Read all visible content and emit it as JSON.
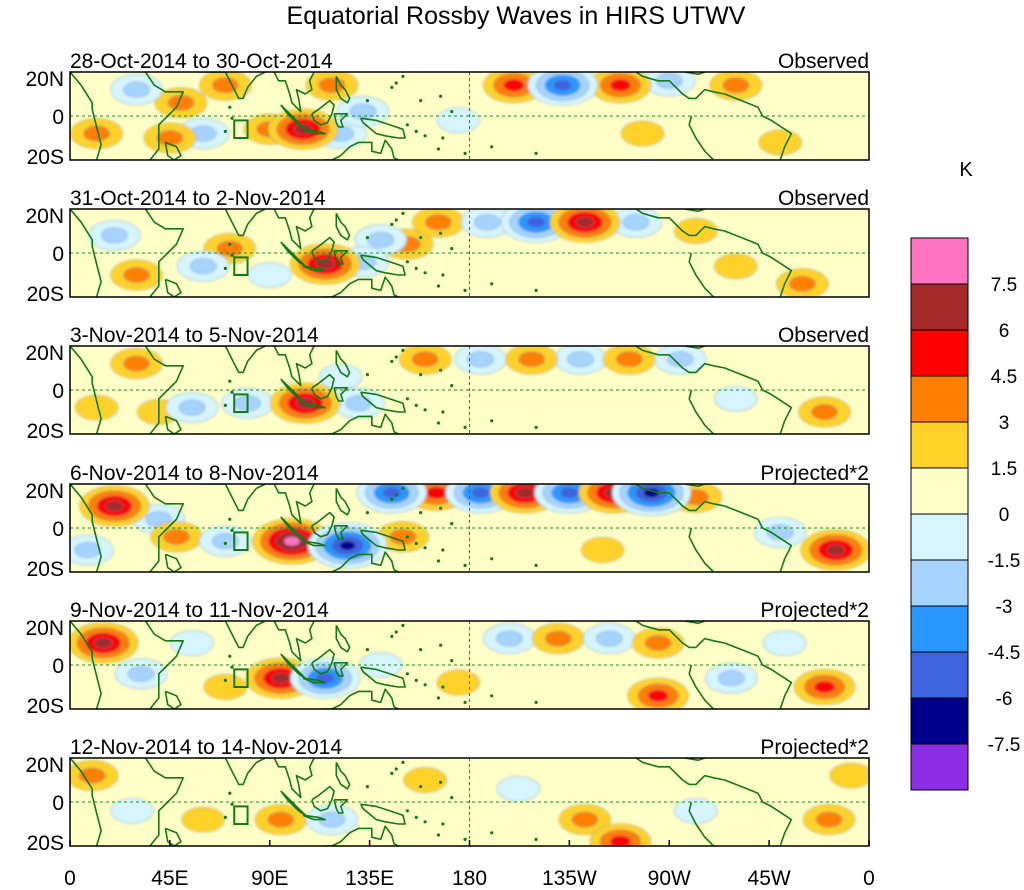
{
  "chart_data": {
    "type": "heatmap",
    "title": "Equatorial Rossby Waves in HIRS UTWV",
    "colorbar": {
      "unit": "K",
      "levels": [
        "7.5",
        "6",
        "4.5",
        "3",
        "1.5",
        "0",
        "-1.5",
        "-3",
        "-4.5",
        "-6",
        "-7.5"
      ],
      "colors": [
        "#ff73c0",
        "#a52a2a",
        "#ff0000",
        "#ff7f00",
        "#ffd22a",
        "#ffffc8",
        "#d6f5ff",
        "#a6d3ff",
        "#2996ff",
        "#3d63e0",
        "#00008c",
        "#8c2ee6"
      ]
    },
    "x_ticks": [
      "0",
      "45E",
      "90E",
      "135E",
      "180",
      "135W",
      "90W",
      "45W",
      "0"
    ],
    "y_ticks": [
      "20N",
      "0",
      "20S"
    ],
    "xlim": [
      0,
      360
    ],
    "ylim": [
      -20,
      20
    ],
    "panels": [
      {
        "date_range": "28-Oct-2014 to 30-Oct-2014",
        "kind": "Observed",
        "anomalies": [
          {
            "lon": 200,
            "lat": 14,
            "value": 5
          },
          {
            "lon": 222,
            "lat": 14,
            "value": -7
          },
          {
            "lon": 248,
            "lat": 14,
            "value": 5
          },
          {
            "lon": 270,
            "lat": 16,
            "value": -3
          },
          {
            "lon": 300,
            "lat": 14,
            "value": 3
          },
          {
            "lon": 105,
            "lat": -6,
            "value": 6
          },
          {
            "lon": 122,
            "lat": -8,
            "value": -3
          },
          {
            "lon": 132,
            "lat": 2,
            "value": -3
          },
          {
            "lon": 118,
            "lat": 14,
            "value": 4
          },
          {
            "lon": 60,
            "lat": -8,
            "value": -4
          },
          {
            "lon": 45,
            "lat": -10,
            "value": 4
          },
          {
            "lon": 50,
            "lat": 6,
            "value": 3
          },
          {
            "lon": 12,
            "lat": -8,
            "value": 3
          },
          {
            "lon": 30,
            "lat": 12,
            "value": -3
          },
          {
            "lon": 90,
            "lat": -6,
            "value": 3
          },
          {
            "lon": 258,
            "lat": -8,
            "value": 2
          },
          {
            "lon": 320,
            "lat": -12,
            "value": 2
          },
          {
            "lon": 175,
            "lat": -2,
            "value": -2
          },
          {
            "lon": 70,
            "lat": 14,
            "value": 3
          }
        ]
      },
      {
        "date_range": "31-Oct-2014 to 2-Nov-2014",
        "kind": "Observed",
        "anomalies": [
          {
            "lon": 166,
            "lat": 14,
            "value": 4
          },
          {
            "lon": 188,
            "lat": 14,
            "value": -4
          },
          {
            "lon": 210,
            "lat": 14,
            "value": -6
          },
          {
            "lon": 232,
            "lat": 14,
            "value": 6
          },
          {
            "lon": 255,
            "lat": 14,
            "value": -3
          },
          {
            "lon": 152,
            "lat": 4,
            "value": 3
          },
          {
            "lon": 115,
            "lat": -5,
            "value": 6
          },
          {
            "lon": 132,
            "lat": -4,
            "value": -4
          },
          {
            "lon": 140,
            "lat": 6,
            "value": -3
          },
          {
            "lon": 60,
            "lat": -6,
            "value": -4
          },
          {
            "lon": 72,
            "lat": 2,
            "value": 3
          },
          {
            "lon": 30,
            "lat": -10,
            "value": 3
          },
          {
            "lon": 20,
            "lat": 8,
            "value": -3
          },
          {
            "lon": 90,
            "lat": -10,
            "value": -2
          },
          {
            "lon": 300,
            "lat": -6,
            "value": 2
          },
          {
            "lon": 330,
            "lat": -14,
            "value": 3
          },
          {
            "lon": 282,
            "lat": 10,
            "value": 2
          }
        ]
      },
      {
        "date_range": "3-Nov-2014 to 5-Nov-2014",
        "kind": "Observed",
        "anomalies": [
          {
            "lon": 160,
            "lat": 14,
            "value": 3
          },
          {
            "lon": 185,
            "lat": 14,
            "value": -3
          },
          {
            "lon": 208,
            "lat": 14,
            "value": 4
          },
          {
            "lon": 230,
            "lat": 14,
            "value": -3
          },
          {
            "lon": 252,
            "lat": 14,
            "value": 4
          },
          {
            "lon": 275,
            "lat": 14,
            "value": -3
          },
          {
            "lon": 106,
            "lat": -6,
            "value": 6
          },
          {
            "lon": 130,
            "lat": -6,
            "value": -4
          },
          {
            "lon": 122,
            "lat": 6,
            "value": -2
          },
          {
            "lon": 30,
            "lat": 12,
            "value": 3
          },
          {
            "lon": 55,
            "lat": -8,
            "value": -3
          },
          {
            "lon": 80,
            "lat": -6,
            "value": -3
          },
          {
            "lon": 40,
            "lat": -10,
            "value": 2
          },
          {
            "lon": 340,
            "lat": -10,
            "value": 4
          },
          {
            "lon": 300,
            "lat": -4,
            "value": -2
          },
          {
            "lon": 12,
            "lat": -8,
            "value": 2
          }
        ]
      },
      {
        "date_range": "6-Nov-2014 to 8-Nov-2014",
        "kind": "Projected*2",
        "anomalies": [
          {
            "lon": 20,
            "lat": 10,
            "value": 7
          },
          {
            "lon": 40,
            "lat": 4,
            "value": -3
          },
          {
            "lon": 48,
            "lat": -4,
            "value": 3
          },
          {
            "lon": 70,
            "lat": -6,
            "value": -4
          },
          {
            "lon": 100,
            "lat": -6,
            "value": 8
          },
          {
            "lon": 125,
            "lat": -8,
            "value": -8
          },
          {
            "lon": 145,
            "lat": 16,
            "value": -6
          },
          {
            "lon": 165,
            "lat": 16,
            "value": 5
          },
          {
            "lon": 185,
            "lat": 16,
            "value": -6
          },
          {
            "lon": 205,
            "lat": 16,
            "value": 6
          },
          {
            "lon": 225,
            "lat": 16,
            "value": -6
          },
          {
            "lon": 245,
            "lat": 16,
            "value": 7
          },
          {
            "lon": 262,
            "lat": 16,
            "value": -8
          },
          {
            "lon": 282,
            "lat": 14,
            "value": 4
          },
          {
            "lon": 345,
            "lat": -10,
            "value": 6
          },
          {
            "lon": 320,
            "lat": -2,
            "value": -3
          },
          {
            "lon": 150,
            "lat": -4,
            "value": 3
          },
          {
            "lon": 8,
            "lat": -10,
            "value": -3
          },
          {
            "lon": 240,
            "lat": -10,
            "value": 2
          }
        ]
      },
      {
        "date_range": "9-Nov-2014 to 11-Nov-2014",
        "kind": "Projected*2",
        "anomalies": [
          {
            "lon": 15,
            "lat": 10,
            "value": 6
          },
          {
            "lon": 32,
            "lat": -4,
            "value": -3
          },
          {
            "lon": 95,
            "lat": -6,
            "value": 6
          },
          {
            "lon": 115,
            "lat": -6,
            "value": -6
          },
          {
            "lon": 140,
            "lat": 0,
            "value": -2
          },
          {
            "lon": 198,
            "lat": 12,
            "value": -3
          },
          {
            "lon": 220,
            "lat": 12,
            "value": 3
          },
          {
            "lon": 243,
            "lat": 12,
            "value": -3
          },
          {
            "lon": 265,
            "lat": 10,
            "value": 3
          },
          {
            "lon": 265,
            "lat": -14,
            "value": 5
          },
          {
            "lon": 340,
            "lat": -10,
            "value": 5
          },
          {
            "lon": 298,
            "lat": -6,
            "value": -3
          },
          {
            "lon": 70,
            "lat": -10,
            "value": 2
          },
          {
            "lon": 55,
            "lat": 10,
            "value": -2
          },
          {
            "lon": 175,
            "lat": -8,
            "value": 2
          },
          {
            "lon": 322,
            "lat": 10,
            "value": -2
          }
        ]
      },
      {
        "date_range": "12-Nov-2014 to 14-Nov-2014",
        "kind": "Projected*2",
        "anomalies": [
          {
            "lon": 10,
            "lat": 12,
            "value": 3
          },
          {
            "lon": 28,
            "lat": -4,
            "value": -2
          },
          {
            "lon": 95,
            "lat": -8,
            "value": 3
          },
          {
            "lon": 118,
            "lat": -8,
            "value": -4
          },
          {
            "lon": 248,
            "lat": -18,
            "value": 5
          },
          {
            "lon": 232,
            "lat": -8,
            "value": 3
          },
          {
            "lon": 342,
            "lat": -8,
            "value": 3
          },
          {
            "lon": 202,
            "lat": 6,
            "value": -2
          },
          {
            "lon": 282,
            "lat": -4,
            "value": -2
          },
          {
            "lon": 160,
            "lat": 10,
            "value": 2
          },
          {
            "lon": 60,
            "lat": -8,
            "value": 2
          },
          {
            "lon": 352,
            "lat": 12,
            "value": 2
          }
        ]
      }
    ]
  }
}
